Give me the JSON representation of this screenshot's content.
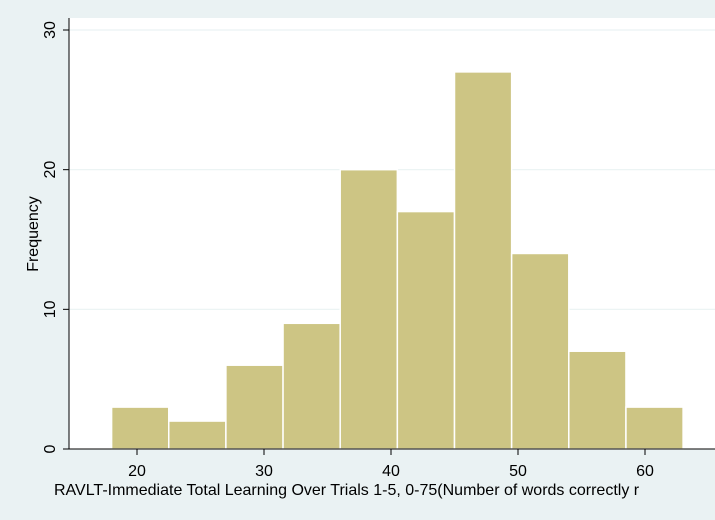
{
  "chart_data": {
    "type": "bar",
    "subtype": "histogram",
    "xlabel": "RAVLT-Immediate Total Learning Over Trials 1-5, 0-75(Number of words correctly r",
    "ylabel": "Frequency",
    "xlim": [
      15,
      63
    ],
    "ylim": [
      0,
      30
    ],
    "x_ticks": [
      20,
      30,
      40,
      50,
      60
    ],
    "y_ticks": [
      0,
      10,
      20,
      30
    ],
    "bins": [
      {
        "start": 18.0,
        "end": 22.5,
        "value": 3
      },
      {
        "start": 22.5,
        "end": 27.0,
        "value": 2
      },
      {
        "start": 27.0,
        "end": 31.5,
        "value": 6
      },
      {
        "start": 31.5,
        "end": 36.0,
        "value": 9
      },
      {
        "start": 36.0,
        "end": 40.5,
        "value": 20
      },
      {
        "start": 40.5,
        "end": 45.0,
        "value": 17
      },
      {
        "start": 45.0,
        "end": 49.5,
        "value": 27
      },
      {
        "start": 49.5,
        "end": 54.0,
        "value": 14
      },
      {
        "start": 54.0,
        "end": 58.5,
        "value": 7
      },
      {
        "start": 58.5,
        "end": 63.0,
        "value": 3
      }
    ],
    "grid": "horizontal",
    "colors": {
      "background": "#eaf2f3",
      "plot_background": "#ffffff",
      "bar_fill": "#cdc584",
      "bar_edge": "#ffffff",
      "grid": "#eaf2f3",
      "axis": "#000000"
    }
  }
}
